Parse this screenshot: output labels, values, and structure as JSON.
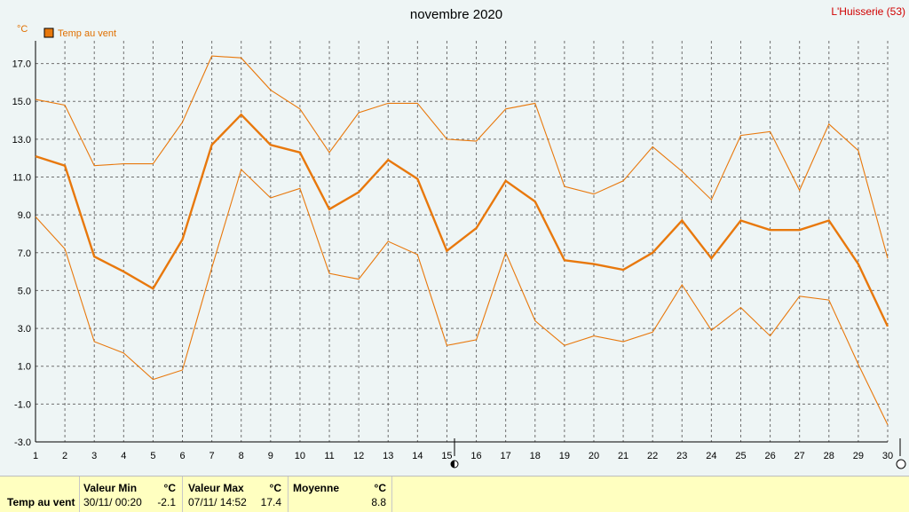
{
  "header": {
    "title": "novembre 2020",
    "station": "L'Huisserie (53)",
    "unit": "°C"
  },
  "legend": {
    "label": "Temp au vent",
    "color": "#e8780c"
  },
  "chart_data": {
    "type": "line",
    "title": "novembre 2020",
    "ylabel": "°C",
    "x": [
      1,
      2,
      3,
      4,
      5,
      6,
      7,
      8,
      9,
      10,
      11,
      12,
      13,
      14,
      15,
      16,
      17,
      18,
      19,
      20,
      21,
      22,
      23,
      24,
      25,
      26,
      27,
      28,
      29,
      30
    ],
    "xlim": [
      1,
      30
    ],
    "ylim": [
      -3.0,
      18.2
    ],
    "yticks": [
      "-3.0",
      "-1.0",
      "1.0",
      "3.0",
      "5.0",
      "7.0",
      "9.0",
      "11.0",
      "13.0",
      "15.0",
      "17.0"
    ],
    "grid": true,
    "legend_position": "top-left",
    "series": [
      {
        "name": "Temp au vent",
        "role": "mean",
        "color": "#e8780c",
        "values": [
          12.1,
          11.6,
          6.8,
          6.0,
          5.1,
          7.7,
          12.7,
          14.3,
          12.7,
          12.3,
          9.3,
          10.2,
          11.9,
          10.9,
          7.1,
          8.3,
          10.8,
          9.7,
          6.6,
          6.4,
          6.1,
          7.0,
          8.7,
          6.7,
          8.7,
          8.2,
          8.2,
          8.7,
          6.4,
          3.1
        ]
      },
      {
        "role": "max",
        "color": "#e8780c",
        "values": [
          15.1,
          14.8,
          11.6,
          11.7,
          11.7,
          13.9,
          17.4,
          17.3,
          15.6,
          14.6,
          12.3,
          14.4,
          14.9,
          14.9,
          13.0,
          12.9,
          14.6,
          14.9,
          10.5,
          10.1,
          10.8,
          12.6,
          11.3,
          9.8,
          13.2,
          13.4,
          10.3,
          13.8,
          12.4,
          6.7
        ]
      },
      {
        "role": "min",
        "color": "#e8780c",
        "values": [
          8.9,
          7.2,
          2.3,
          1.7,
          0.3,
          0.8,
          6.2,
          11.4,
          9.9,
          10.4,
          5.9,
          5.6,
          7.6,
          6.9,
          2.1,
          2.4,
          7.0,
          3.4,
          2.1,
          2.6,
          2.3,
          2.8,
          5.3,
          2.9,
          4.1,
          2.6,
          4.7,
          4.5,
          1.1,
          -2.1
        ]
      }
    ]
  },
  "footer": {
    "series_label": "Temp au vent",
    "min": {
      "label": "Valeur Min",
      "unit": "°C",
      "date": "30/11/  00:20",
      "value": "-2.1"
    },
    "max": {
      "label": "Valeur Max",
      "unit": "°C",
      "date": "07/11/  14:52",
      "value": "17.4"
    },
    "mean": {
      "label": "Moyenne",
      "unit": "°C",
      "value": "8.8"
    }
  }
}
